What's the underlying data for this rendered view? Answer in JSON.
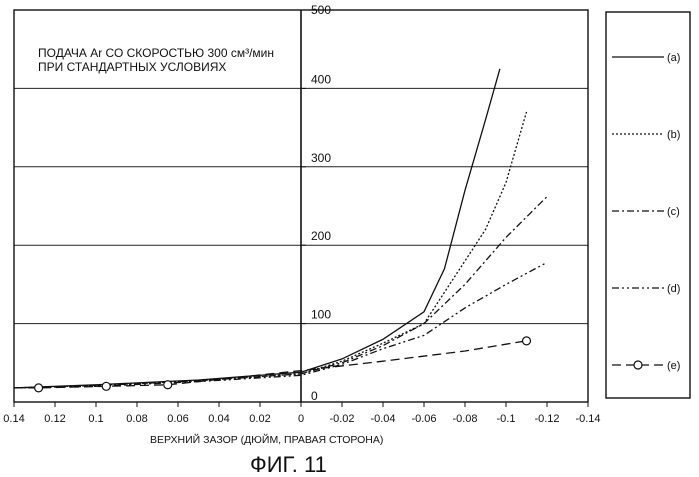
{
  "figure_label": "ФИГ. 11",
  "annotation_line1": "ПОДАЧА Ar СО СКОРОСТЬЮ 300 см³/мин",
  "annotation_line2": "ПРИ СТАНДАРТНЫХ УСЛОВИЯХ",
  "chart_data": {
    "type": "line",
    "xlabel": "ВЕРХНИЙ ЗАЗОР (ДЮЙМ, ПРАВАЯ СТОРОНА)",
    "ylabel": "",
    "xlim": [
      0.14,
      -0.14
    ],
    "ylim": [
      0,
      500
    ],
    "x_ticks": [
      0.14,
      0.12,
      0.1,
      0.08,
      0.06,
      0.04,
      0.02,
      0,
      -0.02,
      -0.04,
      -0.06,
      -0.08,
      -0.1,
      -0.12,
      -0.14
    ],
    "x_tick_labels": [
      "0.14",
      "0.12",
      "0.1",
      "0.08",
      "0.06",
      "0.04",
      "0.02",
      "0",
      "-0.02",
      "-0.04",
      "-0.06",
      "-0.08",
      "-0.1",
      "-0.12",
      "-0.14"
    ],
    "y_ticks": [
      0,
      100,
      200,
      300,
      400,
      500
    ],
    "y_tick_labels": [
      "0",
      "100",
      "200",
      "300",
      "400",
      "500"
    ],
    "grid": "horizontal",
    "legend_position": "right",
    "series": [
      {
        "name": "(a)",
        "dash": "solid",
        "marker": "none",
        "x": [
          0.14,
          0.1,
          0.05,
          0,
          -0.02,
          -0.04,
          -0.06,
          -0.07,
          -0.08,
          -0.09,
          -0.097
        ],
        "y": [
          18,
          22,
          28,
          38,
          55,
          80,
          115,
          170,
          270,
          360,
          425
        ]
      },
      {
        "name": "(b)",
        "dash": "dotted",
        "marker": "none",
        "x": [
          0.14,
          0.1,
          0.05,
          0,
          -0.02,
          -0.04,
          -0.06,
          -0.07,
          -0.08,
          -0.09,
          -0.1,
          -0.11
        ],
        "y": [
          18,
          21,
          27,
          36,
          52,
          75,
          100,
          140,
          180,
          220,
          280,
          370
        ]
      },
      {
        "name": "(c)",
        "dash": "dash-dot",
        "marker": "none",
        "x": [
          0.14,
          0.1,
          0.05,
          0,
          -0.02,
          -0.04,
          -0.06,
          -0.08,
          -0.1,
          -0.12
        ],
        "y": [
          18,
          21,
          27,
          36,
          50,
          72,
          100,
          150,
          210,
          262
        ]
      },
      {
        "name": "(d)",
        "dash": "dash-dot-dot",
        "marker": "none",
        "x": [
          0.14,
          0.1,
          0.05,
          0,
          -0.02,
          -0.04,
          -0.06,
          -0.08,
          -0.1,
          -0.12
        ],
        "y": [
          18,
          20,
          26,
          34,
          48,
          68,
          85,
          120,
          150,
          178
        ]
      },
      {
        "name": "(e)",
        "dash": "dashed",
        "marker": "circle",
        "x": [
          0.14,
          0.128,
          0.095,
          0.065,
          0,
          -0.04,
          -0.08,
          -0.11
        ],
        "y": [
          18,
          18,
          20,
          22,
          40,
          52,
          65,
          78
        ],
        "marker_x": [
          0.128,
          0.095,
          0.065,
          -0.11
        ],
        "marker_y": [
          18,
          20,
          22,
          78
        ]
      }
    ]
  }
}
